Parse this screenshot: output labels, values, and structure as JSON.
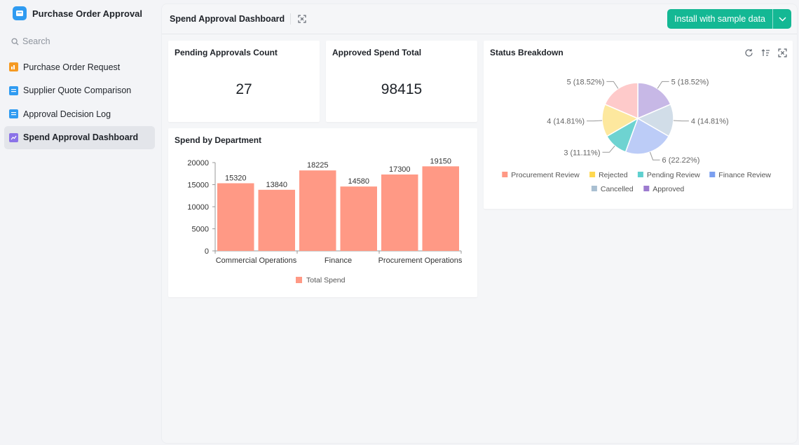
{
  "app": {
    "title": "Purchase Order Approval"
  },
  "search": {
    "placeholder": "Search"
  },
  "sidebar": {
    "items": [
      {
        "label": "Purchase Order Request",
        "icon": "form-icon",
        "color": "#f59a23"
      },
      {
        "label": "Supplier Quote Comparison",
        "icon": "table-icon",
        "color": "#2f9bf1"
      },
      {
        "label": "Approval Decision Log",
        "icon": "table-icon",
        "color": "#2f9bf1"
      },
      {
        "label": "Spend Approval Dashboard",
        "icon": "dashboard-icon",
        "color": "#7b61ff",
        "active": true
      }
    ]
  },
  "header": {
    "title": "Spend Approval Dashboard",
    "install_label": "Install with sample data"
  },
  "cards": {
    "pending": {
      "title": "Pending Approvals Count",
      "value": "27"
    },
    "approved": {
      "title": "Approved Spend Total",
      "value": "98415"
    },
    "bar": {
      "title": "Spend by Department"
    },
    "pie": {
      "title": "Status Breakdown"
    }
  },
  "colors": {
    "accent": "#14b894",
    "bar": "#ff9985"
  },
  "chart_data": [
    {
      "type": "bar",
      "title": "Spend by Department",
      "categories": [
        "Commercial Operations",
        "",
        "Finance",
        "",
        "Procurement Operations",
        ""
      ],
      "series": [
        {
          "name": "Total Spend",
          "values": [
            15320,
            13840,
            18225,
            14580,
            17300,
            19150
          ],
          "color": "#ff9985"
        }
      ],
      "xlabel": "",
      "ylabel": "",
      "ylim": [
        0,
        20000
      ],
      "yticks": [
        0,
        5000,
        10000,
        15000,
        20000
      ],
      "legend": "bottom"
    },
    {
      "type": "pie",
      "title": "Status Breakdown",
      "slices": [
        {
          "name": "Approved",
          "value": 5,
          "label": "5 (18.52%)",
          "color": "#c7b8e6"
        },
        {
          "name": "Cancelled",
          "value": 4,
          "label": "4 (14.81%)",
          "color": "#d1dde8"
        },
        {
          "name": "Finance Review",
          "value": 6,
          "label": "6 (22.22%)",
          "color": "#bcccf7"
        },
        {
          "name": "Pending Review",
          "value": 3,
          "label": "3 (11.11%)",
          "color": "#6ed3d1"
        },
        {
          "name": "Rejected",
          "value": 4,
          "label": "4 (14.81%)",
          "color": "#fde89e"
        },
        {
          "name": "Procurement Review",
          "value": 5,
          "label": "5 (18.52%)",
          "color": "#fecaca"
        }
      ],
      "legend_items": [
        {
          "name": "Procurement Review",
          "color": "#ff9985"
        },
        {
          "name": "Rejected",
          "color": "#ffd84f"
        },
        {
          "name": "Pending Review",
          "color": "#5fd0cf"
        },
        {
          "name": "Finance Review",
          "color": "#7b9ff0"
        },
        {
          "name": "Cancelled",
          "color": "#a9bfd1"
        },
        {
          "name": "Approved",
          "color": "#9d7bcf"
        }
      ],
      "legend": "bottom"
    }
  ]
}
